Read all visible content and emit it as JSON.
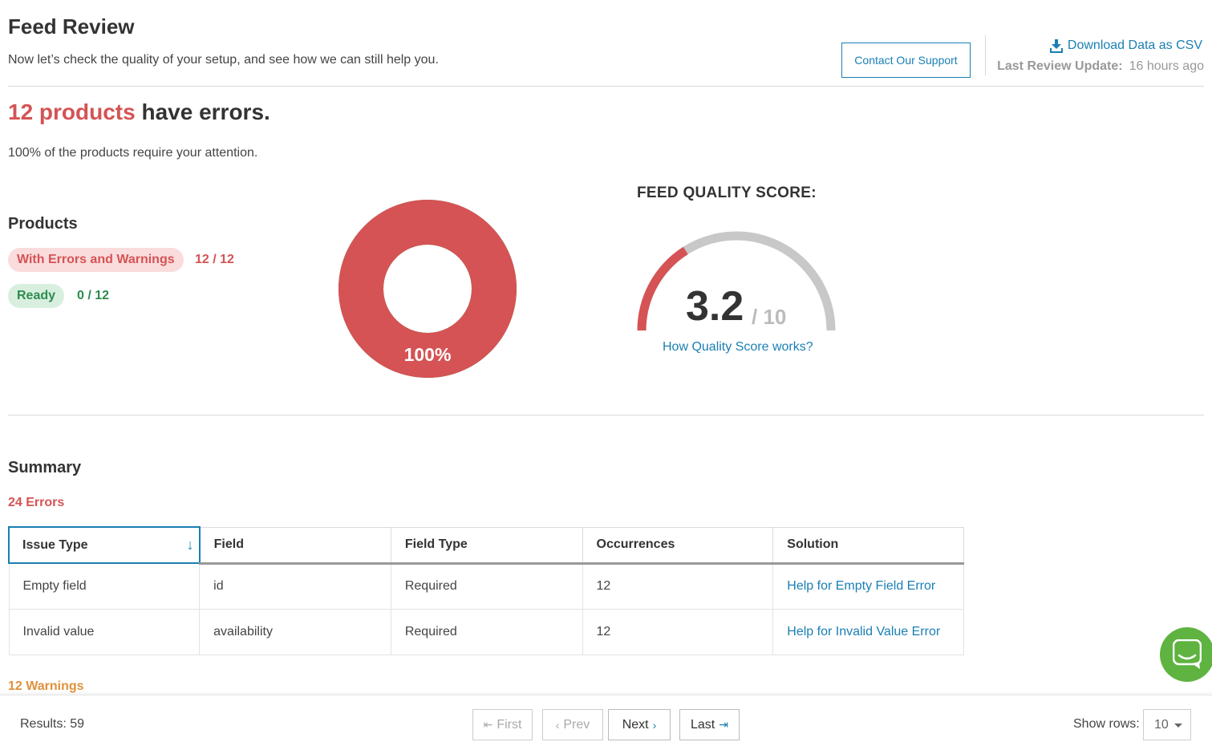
{
  "header": {
    "title": "Feed Review",
    "subtitle": "Now let’s check the quality of your setup, and see how we can still help you.",
    "contact_label": "Contact Our Support",
    "download_label": "Download Data as CSV",
    "last_review_label": "Last Review Update:",
    "last_review_value": "16 hours ago"
  },
  "status": {
    "count_text": "12 products",
    "rest_text": "have errors.",
    "attention": "100% of the products require your attention."
  },
  "products": {
    "title": "Products",
    "errors_label": "With Errors and Warnings",
    "errors_count": "12 / 12",
    "ready_label": "Ready",
    "ready_count": "0 / 12",
    "donut_label": "100%",
    "error_fraction": 1.0
  },
  "quality": {
    "title": "FEED QUALITY SCORE:",
    "score": "3.2",
    "max": "/ 10",
    "score_value": 3.2,
    "score_max": 10,
    "link": "How Quality Score works?"
  },
  "summary": {
    "title": "Summary",
    "errors_count": "24 Errors",
    "warnings_count": "12 Warnings",
    "columns": [
      "Issue Type",
      "Field",
      "Field Type",
      "Occurrences",
      "Solution"
    ],
    "rows": [
      [
        "Empty field",
        "id",
        "Required",
        "12",
        "Help for Empty Field Error"
      ],
      [
        "Invalid value",
        "availability",
        "Required",
        "12",
        "Help for Invalid Value Error"
      ]
    ]
  },
  "footer": {
    "results": "Results: 59",
    "first": "First",
    "prev": "Prev",
    "next": "Next",
    "last": "Last",
    "show_rows_label": "Show rows:",
    "rows_value": "10"
  },
  "colors": {
    "error": "#d55354",
    "ready": "#2e8b4e",
    "warning": "#e0913c",
    "link": "#1a7fb3",
    "chat": "#5fb340"
  }
}
